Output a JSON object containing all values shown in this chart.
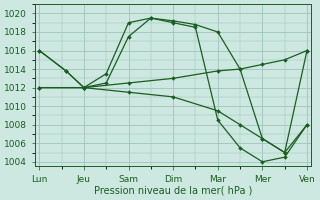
{
  "xlabel": "Pression niveau de la mer( hPa )",
  "background_color": "#cce8e0",
  "line_color": "#1a5e20",
  "grid_color": "#a0c4bc",
  "ylim": [
    1003.5,
    1021.0
  ],
  "yticks": [
    1004,
    1006,
    1008,
    1010,
    1012,
    1014,
    1016,
    1018,
    1020
  ],
  "x_labels": [
    "Lun",
    "Jeu",
    "Sam",
    "Dim",
    "Mar",
    "Mer",
    "Ven"
  ],
  "x_ticks": [
    0,
    1,
    2,
    3,
    4,
    5,
    6
  ],
  "xlim": [
    -0.1,
    6.1
  ],
  "series": [
    {
      "x": [
        0,
        0.6,
        1,
        1.5,
        2,
        2.5,
        3,
        3.5,
        4,
        4.5,
        5,
        5.5,
        6
      ],
      "y": [
        1016,
        1013.8,
        1012,
        1013.5,
        1019,
        1019.5,
        1019.2,
        1018.8,
        1018,
        1014,
        1006.5,
        1005,
        1016
      ]
    },
    {
      "x": [
        0,
        0.6,
        1,
        1.5,
        2,
        2.5,
        3,
        3.5,
        4,
        4.5,
        5,
        5.5,
        6
      ],
      "y": [
        1016,
        1013.8,
        1012,
        1012.5,
        1017.5,
        1019.5,
        1019,
        1018.5,
        1008.5,
        1005.5,
        1004,
        1004.5,
        1008
      ]
    },
    {
      "x": [
        0,
        1,
        2,
        3,
        4,
        4.5,
        5,
        5.5,
        6
      ],
      "y": [
        1012,
        1012,
        1012.5,
        1013,
        1013.8,
        1014,
        1014.5,
        1015,
        1016
      ]
    },
    {
      "x": [
        0,
        1,
        2,
        3,
        4,
        4.5,
        5,
        5.5,
        6
      ],
      "y": [
        1012,
        1012,
        1011.5,
        1011,
        1009.5,
        1008,
        1006.5,
        1005,
        1008
      ]
    }
  ]
}
